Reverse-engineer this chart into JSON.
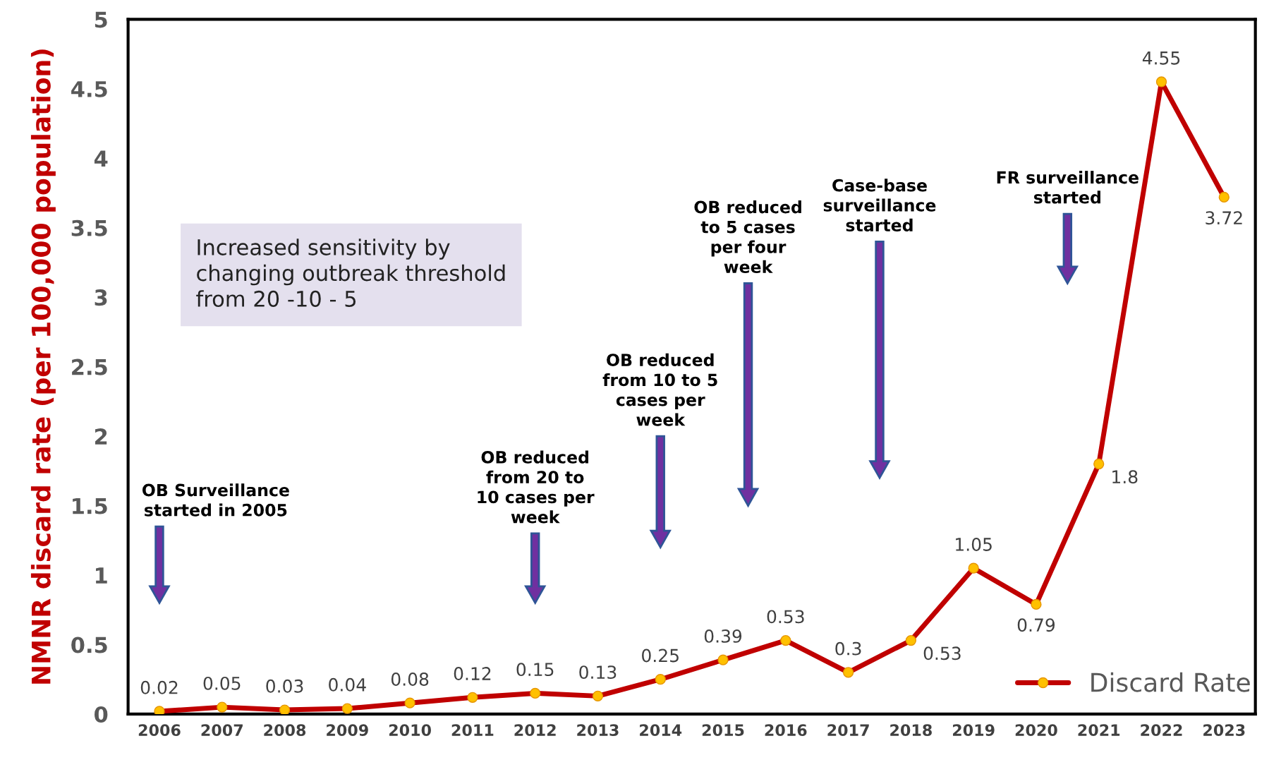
{
  "chart_data": {
    "type": "line",
    "ylabel": "NMNR discard rate (per 100,000 population)",
    "categories": [
      "2006",
      "2007",
      "2008",
      "2009",
      "2010",
      "2011",
      "2012",
      "2013",
      "2014",
      "2015",
      "2016",
      "2017",
      "2018",
      "2019",
      "2020",
      "2021",
      "2022",
      "2023"
    ],
    "series": [
      {
        "name": "Discard Rate",
        "color": "#c00000",
        "values": [
          0.02,
          0.05,
          0.03,
          0.04,
          0.08,
          0.12,
          0.15,
          0.13,
          0.25,
          0.39,
          0.53,
          0.3,
          0.53,
          1.05,
          0.79,
          1.8,
          4.55,
          3.72
        ]
      }
    ],
    "ylim": [
      0,
      5
    ],
    "yticks": [
      0,
      0.5,
      1,
      1.5,
      2,
      2.5,
      3,
      3.5,
      4,
      4.5,
      5
    ],
    "data_labels": true,
    "marker": "circle",
    "line_style": "solid",
    "grid": false,
    "legend": "bottom right",
    "annotations": [
      "Increased sensitivity by changing outbreak threshold from 20 -10 - 5",
      "OB Surveillance started in 2005",
      "OB reduced from 20 to 10 cases per week",
      "OB reduced from 10 to 5 cases per week",
      "OB reduced to 5 cases per four week",
      "Case-base surveillance started",
      "FR surveillance started"
    ]
  }
}
